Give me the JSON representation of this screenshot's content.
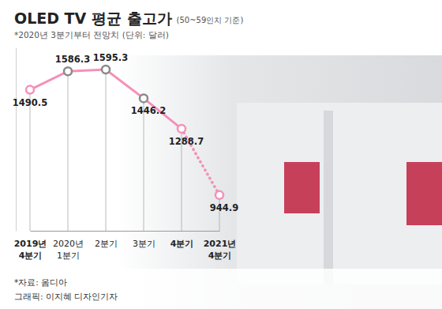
{
  "chart_data": {
    "type": "line",
    "title": "OLED TV 평균 출고가",
    "subtitle": "(50~59인치 기준)",
    "annotations": [
      "*2020년 3분기부터 전망치  (단위: 달러)",
      "*자료: 옴디아",
      "그래픽: 이지혜 디자인기자"
    ],
    "categories": [
      "2019년\n4분기",
      "2020년\n1분기",
      "2분기",
      "3분기",
      "4분기",
      "2021년\n4분기"
    ],
    "series": [
      {
        "values": [
          1490.5,
          1586.3,
          1595.3,
          1446.2,
          1288.7,
          null
        ],
        "color": "#f590b9",
        "line_style": "solid"
      },
      {
        "values": [
          null,
          null,
          null,
          null,
          1288.7,
          944.9
        ],
        "color": "#f590b9",
        "line_style": "dotted"
      }
    ],
    "colors": [
      "#f590b9",
      "#8a8a8a",
      "#8a8a8a",
      "#8a8a8a",
      "#f590b9",
      "#f590b9"
    ],
    "marker": "circle",
    "ylim": [
      760,
      1710
    ],
    "data_labels": true,
    "tick_labels": "x",
    "grid": false
  }
}
